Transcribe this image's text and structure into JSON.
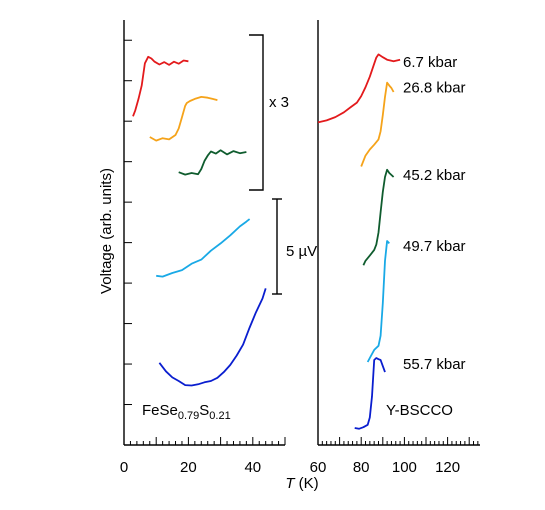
{
  "chart_data": [
    {
      "type": "line",
      "panel": "left",
      "sample": "FeSe0.79S0.21",
      "sample_label": {
        "base": "FeSe",
        "sub1": "0.79",
        "mid": "S",
        "sub2": "0.21"
      },
      "xlabel": "T (K)",
      "ylabel": "Voltage (arb. units)",
      "xlim": [
        0,
        50
      ],
      "x_ticks": [
        0,
        20,
        40
      ],
      "y_ticks": "unlabeled",
      "colors": [
        "#e31a1c",
        "#f5a31a",
        "#0f5c2e",
        "#19a9e6",
        "#0a1ecf"
      ],
      "annotations": [
        "x 3",
        "5 µV"
      ],
      "series": [
        {
          "x": [
            2.8,
            3.5,
            4.5,
            5.5,
            6.5,
            7.5,
            8.5,
            9.5,
            11,
            12.5,
            14,
            15.5,
            17,
            18.5,
            20
          ],
          "y": [
            8.12,
            8.27,
            8.55,
            8.88,
            9.43,
            9.59,
            9.55,
            9.47,
            9.4,
            9.46,
            9.39,
            9.47,
            9.42,
            9.5,
            9.48
          ]
        },
        {
          "x": [
            8,
            10,
            12,
            14,
            16,
            17,
            18,
            19,
            19.5,
            20.5,
            22,
            24,
            26,
            27.5,
            29
          ],
          "y": [
            7.61,
            7.52,
            7.58,
            7.55,
            7.66,
            7.82,
            8.1,
            8.38,
            8.45,
            8.5,
            8.55,
            8.6,
            8.58,
            8.55,
            8.52
          ]
        },
        {
          "x": [
            17,
            19,
            21,
            23,
            24,
            25,
            26,
            27,
            28.5,
            30,
            32,
            34,
            36,
            38
          ],
          "y": [
            6.74,
            6.68,
            6.72,
            6.69,
            6.82,
            7.02,
            7.15,
            7.25,
            7.2,
            7.28,
            7.18,
            7.26,
            7.21,
            7.24
          ]
        },
        {
          "x": [
            10,
            12,
            15,
            18,
            21,
            24,
            27,
            30,
            33,
            36,
            38,
            39
          ],
          "y": [
            4.18,
            4.16,
            4.25,
            4.32,
            4.48,
            4.58,
            4.8,
            4.98,
            5.18,
            5.4,
            5.52,
            5.58
          ]
        },
        {
          "x": [
            11,
            13,
            15,
            17,
            19,
            21,
            23,
            25,
            27,
            29,
            31,
            33,
            35,
            37,
            39,
            41,
            43,
            44
          ],
          "y": [
            2.03,
            1.82,
            1.67,
            1.58,
            1.48,
            1.47,
            1.5,
            1.55,
            1.58,
            1.66,
            1.8,
            1.98,
            2.21,
            2.48,
            2.9,
            3.28,
            3.62,
            3.87
          ]
        }
      ]
    },
    {
      "type": "line",
      "panel": "right",
      "sample": "Y-BSCCO",
      "xlabel": "T (K)",
      "xlim": [
        60,
        135
      ],
      "x_ticks": [
        60,
        80,
        100,
        120
      ],
      "y_ticks": "unlabeled",
      "colors": [
        "#e31a1c",
        "#f5a31a",
        "#0f5c2e",
        "#19a9e6",
        "#0a1ecf"
      ],
      "series": [
        {
          "name": "6.7 kbar",
          "x": [
            60,
            64,
            68,
            72,
            75,
            78,
            80,
            82,
            84,
            86,
            87,
            88,
            90,
            92,
            95,
            98
          ],
          "y": [
            7.97,
            8.02,
            8.1,
            8.22,
            8.34,
            8.46,
            8.62,
            8.84,
            9.1,
            9.42,
            9.57,
            9.65,
            9.58,
            9.52,
            9.48,
            9.52
          ]
        },
        {
          "name": "26.8 kbar",
          "x": [
            80,
            82,
            84,
            86,
            88,
            89,
            90,
            91,
            92,
            93,
            94,
            95
          ],
          "y": [
            6.88,
            7.15,
            7.3,
            7.42,
            7.55,
            7.75,
            8.15,
            8.6,
            8.95,
            8.88,
            8.82,
            8.72
          ]
        },
        {
          "name": "45.2 kbar",
          "x": [
            81,
            82,
            84,
            86,
            87,
            88,
            89,
            90,
            91,
            92,
            93,
            95
          ],
          "y": [
            4.44,
            4.55,
            4.68,
            4.82,
            4.95,
            5.25,
            5.75,
            6.25,
            6.62,
            6.8,
            6.72,
            6.62
          ]
        },
        {
          "name": "49.7 kbar",
          "x": [
            83,
            84,
            86,
            88,
            89,
            90,
            91,
            92,
            93
          ],
          "y": [
            2.05,
            2.15,
            2.35,
            2.45,
            2.7,
            3.5,
            4.55,
            5.04,
            4.98
          ]
        },
        {
          "name": "55.7 kbar",
          "x": [
            77,
            79,
            81,
            83,
            84,
            85,
            86,
            87,
            88,
            89,
            90,
            91
          ],
          "y": [
            0.42,
            0.4,
            0.44,
            0.5,
            0.68,
            1.2,
            2.1,
            2.15,
            2.12,
            2.1,
            1.95,
            1.8
          ]
        }
      ]
    }
  ]
}
